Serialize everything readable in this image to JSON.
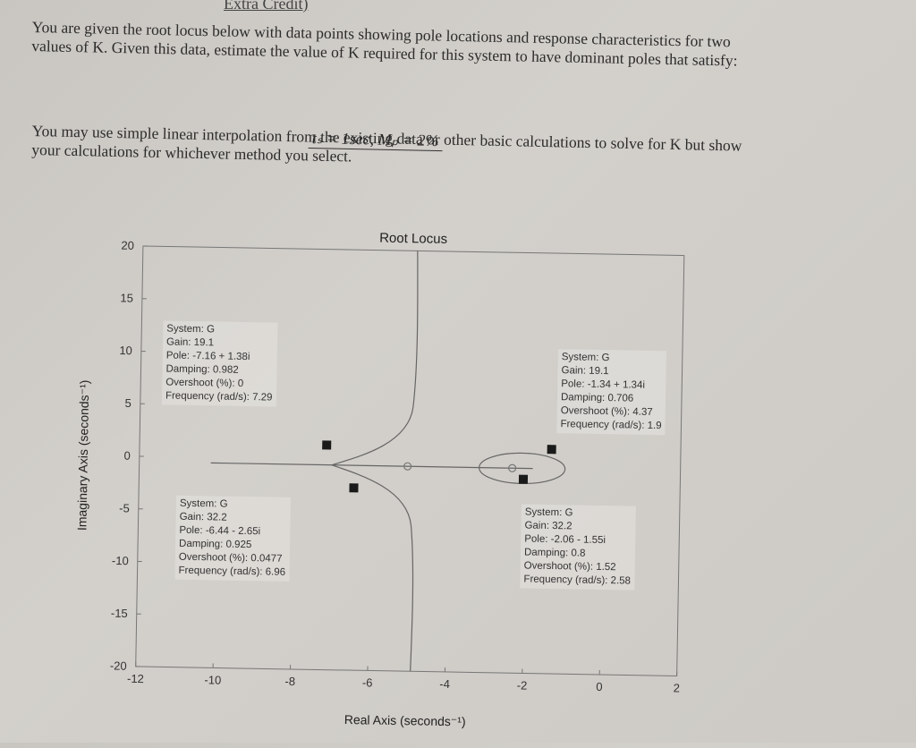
{
  "heading": "Extra Credit)",
  "paragraph1": "You are given the root locus below with data points showing pole locations and response characteristics for two values of K. Given this data, estimate the value of K required for this system to have dominant poles that satisfy:",
  "formula": "tₛ = 1sec, Mₚ = 2%",
  "paragraph2": "You may use simple linear interpolation from the existing data or other basic calculations to solve for K but show your calculations for whichever method you select.",
  "chart_data": {
    "type": "scatter",
    "title": "Root Locus",
    "xlabel": "Real Axis (seconds⁻¹)",
    "ylabel": "Imaginary Axis (seconds⁻¹)",
    "xlim": [
      -12,
      2
    ],
    "ylim": [
      -20,
      20
    ],
    "xticks": [
      "-12",
      "-10",
      "-8",
      "-6",
      "-4",
      "-2",
      "0",
      "2"
    ],
    "yticks": [
      "20",
      "15",
      "10",
      "5",
      "0",
      "-5",
      "-10",
      "-15",
      "-20"
    ],
    "poles_markers": [
      {
        "x": -7.16,
        "y": 1.38
      },
      {
        "x": -6.44,
        "y": -2.65
      },
      {
        "x": -1.34,
        "y": 1.34
      },
      {
        "x": -2.06,
        "y": -1.55
      }
    ],
    "datatips": [
      {
        "system": "System: G",
        "gain": "Gain: 19.1",
        "pole": "Pole: -7.16 + 1.38i",
        "damping": "Damping: 0.982",
        "overshoot": "Overshoot (%): 0",
        "frequency": "Frequency (rad/s): 7.29"
      },
      {
        "system": "System: G",
        "gain": "Gain: 32.2",
        "pole": "Pole: -6.44 - 2.65i",
        "damping": "Damping: 0.925",
        "overshoot": "Overshoot (%): 0.0477",
        "frequency": "Frequency (rad/s): 6.96"
      },
      {
        "system": "System: G",
        "gain": "Gain: 19.1",
        "pole": "Pole: -1.34 + 1.34i",
        "damping": "Damping: 0.706",
        "overshoot": "Overshoot (%): 4.37",
        "frequency": "Frequency (rad/s): 1.9"
      },
      {
        "system": "System: G",
        "gain": "Gain: 32.2",
        "pole": "Pole: -2.06 - 1.55i",
        "damping": "Damping: 0.8",
        "overshoot": "Overshoot (%): 1.52",
        "frequency": "Frequency (rad/s): 2.58"
      }
    ]
  }
}
